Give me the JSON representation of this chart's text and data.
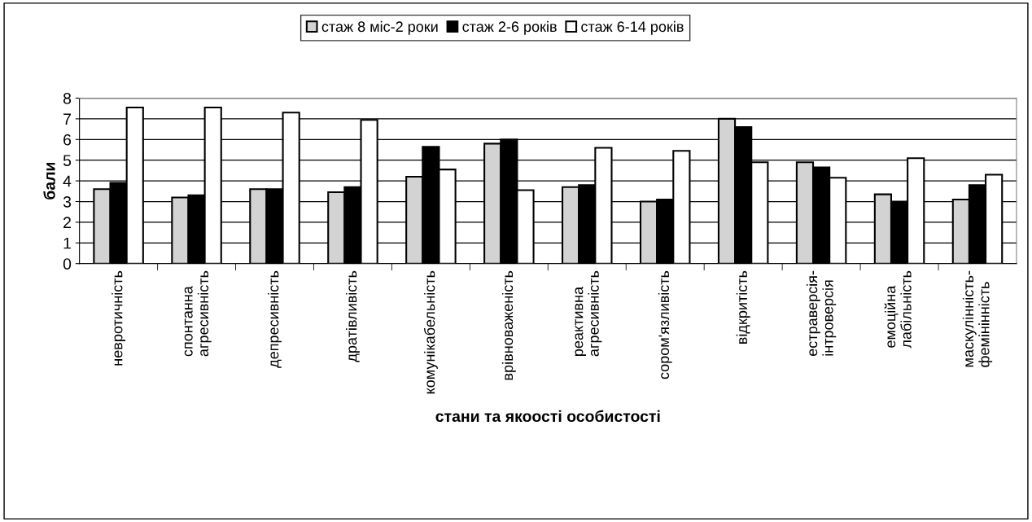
{
  "chart_data": {
    "type": "bar",
    "xlabel": "стани та якоості особистості",
    "ylabel": "бали",
    "categories": [
      "невротичність",
      "спонтанна\nагресивність",
      "депресивність",
      "дратівливість",
      "комунікабельність",
      "врівноваженість",
      "реактивна\nагресивність",
      "сором'язливість",
      "відкритість",
      "естраверсія-\nінтроверсія",
      "емоційна\nлабільність",
      "маскулінність-\nфемінінність"
    ],
    "series": [
      {
        "name": "стаж 8 міс-2 роки",
        "color": "#d3d3d3",
        "values": [
          3.6,
          3.2,
          3.6,
          3.45,
          4.2,
          5.8,
          3.7,
          3.0,
          7.0,
          4.9,
          3.35,
          3.1
        ]
      },
      {
        "name": "стаж 2-6 років",
        "color": "#000000",
        "values": [
          3.9,
          3.3,
          3.6,
          3.7,
          5.65,
          6.0,
          3.8,
          3.1,
          6.6,
          4.65,
          3.0,
          3.8
        ]
      },
      {
        "name": "стаж 6-14 років",
        "color": "#ffffff",
        "values": [
          7.55,
          7.55,
          7.3,
          6.95,
          4.55,
          3.55,
          5.6,
          5.45,
          4.9,
          4.15,
          5.1,
          4.3
        ]
      }
    ],
    "ylim": [
      0,
      8
    ],
    "yticks": [
      0,
      1,
      2,
      3,
      4,
      5,
      6,
      7,
      8
    ],
    "grid": "y",
    "legend": "top"
  }
}
